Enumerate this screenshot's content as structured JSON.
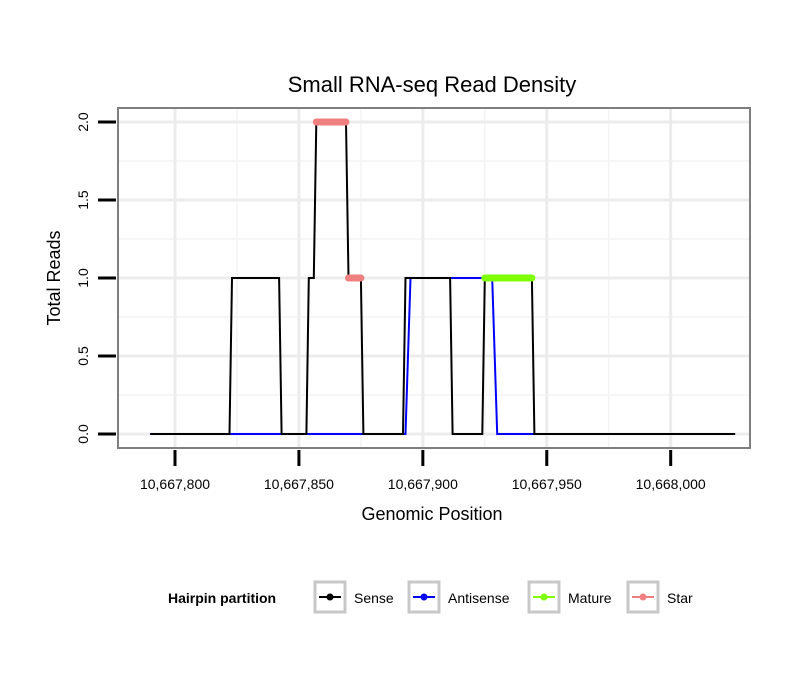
{
  "chart_data": {
    "type": "line",
    "title": "Small RNA-seq Read Density",
    "xlabel": "Genomic Position",
    "ylabel": "Total Reads",
    "xlim": [
      10667777,
      10668032
    ],
    "ylim": [
      -0.09,
      2.09
    ],
    "x_ticks": [
      10667800,
      10667850,
      10667900,
      10667950,
      10668000
    ],
    "x_tick_labels": [
      "10,667,800",
      "10,667,850",
      "10,667,900",
      "10,667,950",
      "10,668,000"
    ],
    "y_ticks": [
      0,
      0.5,
      1,
      1.5,
      2
    ],
    "y_tick_labels": [
      "0.0",
      "0.5",
      "1.0",
      "1.5",
      "2.0"
    ],
    "grid": true,
    "legend": {
      "title": "Hairpin partition",
      "position": "bottom",
      "entries": [
        {
          "label": "Sense",
          "color": "#000000"
        },
        {
          "label": "Antisense",
          "color": "#0000ff"
        },
        {
          "label": "Mature",
          "color": "#7fff00"
        },
        {
          "label": "Star",
          "color": "#f08080"
        }
      ]
    },
    "series": [
      {
        "name": "Antisense",
        "color": "#0000ff",
        "x": [
          10667790,
          10667893,
          10667895,
          10667928,
          10667930,
          10668026
        ],
        "y": [
          0,
          0,
          1,
          1,
          0,
          0
        ]
      },
      {
        "name": "Sense",
        "color": "#000000",
        "x": [
          10667790,
          10667822,
          10667823,
          10667842,
          10667843,
          10667853,
          10667854,
          10667856,
          10667857,
          10667869,
          10667870,
          10667875,
          10667876,
          10667892,
          10667893,
          10667911,
          10667912,
          10667924,
          10667925,
          10667944,
          10667945,
          10668026
        ],
        "y": [
          0,
          0,
          1,
          1,
          0,
          0,
          1,
          1,
          2,
          2,
          1,
          1,
          0,
          0,
          1,
          1,
          0,
          0,
          1,
          1,
          0,
          0
        ]
      },
      {
        "name": "Mature",
        "color": "#7fff00",
        "x": [
          10667925,
          10667944
        ],
        "y": [
          1,
          1
        ]
      },
      {
        "name": "Star",
        "color": "#f08080",
        "x": [
          10667857,
          10667869
        ],
        "y": [
          2,
          2
        ]
      },
      {
        "name": "Star",
        "color": "#f08080",
        "x": [
          10667870,
          10667875
        ],
        "y": [
          1,
          1
        ]
      }
    ]
  }
}
